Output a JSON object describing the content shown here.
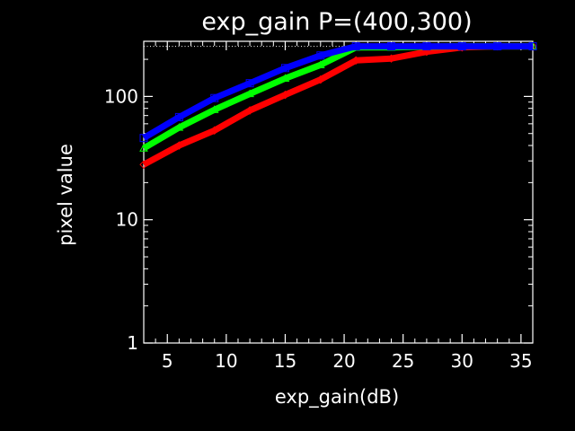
{
  "chart_data": {
    "type": "line",
    "title": "exp_gain  P=(400,300)",
    "xlabel": "exp_gain(dB)",
    "ylabel": "pixel value",
    "xlim": [
      3,
      36
    ],
    "ylim": [
      1,
      280
    ],
    "y_scale": "log",
    "grid": false,
    "x_ticks": [
      5,
      10,
      15,
      20,
      25,
      30,
      35
    ],
    "y_ticks": [
      1,
      10,
      100
    ],
    "x_tick_labels": [
      "5",
      "10",
      "15",
      "20",
      "25",
      "30",
      "35"
    ],
    "y_tick_labels": [
      "1",
      "10",
      "100"
    ],
    "saturation_level": 255,
    "x": [
      3,
      6,
      9,
      12,
      15,
      18,
      21,
      24,
      27,
      30,
      33,
      36
    ],
    "series": [
      {
        "color": "#ff0000",
        "marker": "diamond",
        "values": [
          28,
          40,
          53,
          77,
          103,
          137,
          196,
          203,
          230,
          250,
          255,
          255
        ]
      },
      {
        "color": "#00ff00",
        "marker": "triangle",
        "values": [
          38,
          56,
          78,
          105,
          140,
          180,
          250,
          250,
          253,
          255,
          255,
          255
        ]
      },
      {
        "color": "#0000ff",
        "marker": "square",
        "values": [
          46,
          68,
          97,
          128,
          170,
          215,
          255,
          255,
          255,
          255,
          255,
          255
        ]
      }
    ]
  }
}
